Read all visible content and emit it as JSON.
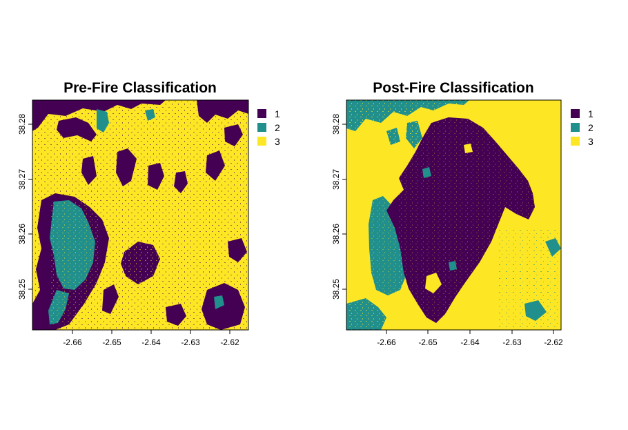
{
  "colors": {
    "class_1": "#440154",
    "class_2": "#21908c",
    "class_3": "#fde725"
  },
  "chart_data": [
    {
      "type": "heatmap",
      "title": "Pre-Fire Classification",
      "xlim": [
        -2.6695,
        -2.6185
      ],
      "ylim": [
        38.2418,
        38.2847
      ],
      "x_ticks": [
        "-2.66",
        "-2.65",
        "-2.64",
        "-2.63",
        "-2.62"
      ],
      "y_ticks": [
        "38.25",
        "38.26",
        "38.27",
        "38.28"
      ],
      "legend": {
        "placement": "right",
        "entries": [
          "1",
          "2",
          "3"
        ]
      },
      "dominant_class": "3",
      "regions": [
        {
          "class": "2",
          "description_area": "western basin",
          "x": [
            -2.6645,
            -2.6545
          ],
          "y": [
            38.2468,
            38.2628
          ]
        },
        {
          "class": "1",
          "description_area": "western margin ring",
          "x": [
            -2.6695,
            -2.6525
          ],
          "y": [
            38.242,
            38.265
          ]
        },
        {
          "class": "1",
          "description_area": "north-west border",
          "x": [
            -2.6695,
            -2.6395
          ],
          "y": [
            38.278,
            38.2847
          ]
        },
        {
          "class": "1",
          "description_area": "north-east border",
          "x": [
            -2.6275,
            -2.6185
          ],
          "y": [
            38.28,
            38.2847
          ]
        },
        {
          "class": "1",
          "description_area": "south-east patches",
          "x": [
            -2.633,
            -2.6185
          ],
          "y": [
            38.2418,
            38.252
          ]
        }
      ]
    },
    {
      "type": "heatmap",
      "title": "Post-Fire Classification",
      "xlim": [
        -2.6695,
        -2.6185
      ],
      "ylim": [
        38.2418,
        38.2847
      ],
      "x_ticks": [
        "-2.66",
        "-2.65",
        "-2.64",
        "-2.63",
        "-2.62"
      ],
      "y_ticks": [
        "38.25",
        "38.26",
        "38.27",
        "38.28"
      ],
      "legend": {
        "placement": "right",
        "entries": [
          "1",
          "2",
          "3"
        ]
      },
      "dominant_class": "3",
      "regions": [
        {
          "class": "1",
          "description_area": "burn scar",
          "x": [
            -2.659,
            -2.6225
          ],
          "y": [
            38.2432,
            38.2815
          ]
        },
        {
          "class": "2",
          "description_area": "western strip",
          "x": [
            -2.6615,
            -2.652
          ],
          "y": [
            38.244,
            38.264
          ]
        },
        {
          "class": "2",
          "description_area": "northern border",
          "x": [
            -2.6695,
            -2.635
          ],
          "y": [
            38.277,
            38.2847
          ]
        },
        {
          "class": "2",
          "description_area": "south-west patches",
          "x": [
            -2.6695,
            -2.653
          ],
          "y": [
            38.2418,
            38.25
          ]
        }
      ]
    }
  ]
}
